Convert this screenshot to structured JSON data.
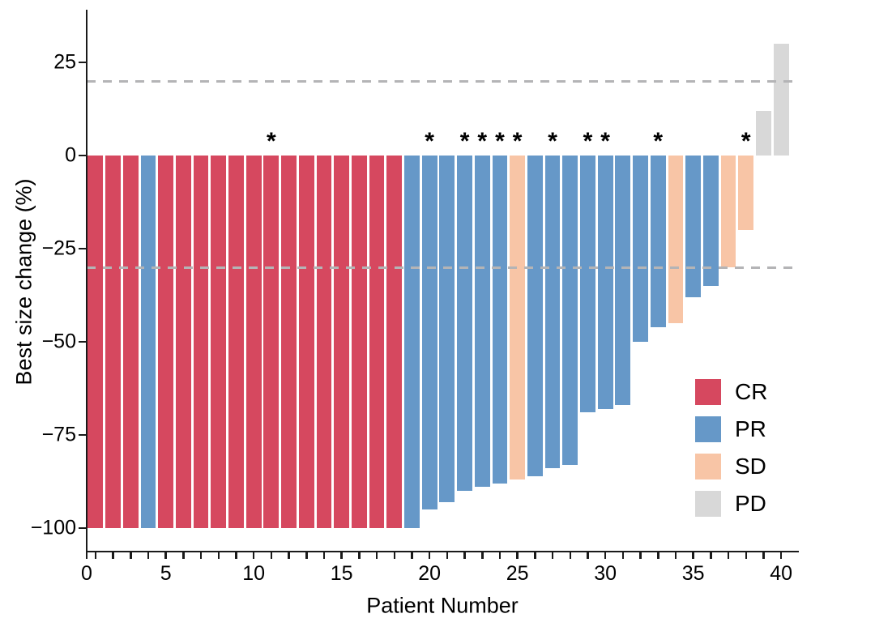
{
  "chart_data": {
    "type": "bar",
    "title": "",
    "xlabel": "Patient Number",
    "ylabel": "Best size change (%)",
    "ylim": [
      -100,
      32
    ],
    "xlim": [
      0,
      40.5
    ],
    "grid": false,
    "legend_position": "right-bottom-inside",
    "reference_lines": [
      20,
      -30
    ],
    "reference_line_color": "#b4b4b6",
    "axis_color": "#1a1a1a",
    "y_ticks": [
      {
        "v": 25,
        "label": "25"
      },
      {
        "v": 0,
        "label": "0"
      },
      {
        "v": -25,
        "label": "−25"
      },
      {
        "v": -50,
        "label": "−50"
      },
      {
        "v": -75,
        "label": "−75"
      },
      {
        "v": -100,
        "label": "−100"
      }
    ],
    "x_ticks": [
      {
        "v": 0,
        "label": "0"
      },
      {
        "v": 5,
        "label": "5"
      },
      {
        "v": 10,
        "label": "10"
      },
      {
        "v": 15,
        "label": "15"
      },
      {
        "v": 20,
        "label": "20"
      },
      {
        "v": 25,
        "label": "25"
      },
      {
        "v": 30,
        "label": "30"
      },
      {
        "v": 35,
        "label": "35"
      },
      {
        "v": 40,
        "label": "40"
      }
    ],
    "legend": [
      {
        "code": "CR",
        "color": "#d6485f"
      },
      {
        "code": "PR",
        "color": "#6698c8"
      },
      {
        "code": "SD",
        "color": "#f8c5a6"
      },
      {
        "code": "PD",
        "color": "#d8d8d8"
      }
    ],
    "star_marker": "*",
    "series": [
      {
        "patient": 1,
        "value": -100,
        "response": "CR",
        "star": false
      },
      {
        "patient": 2,
        "value": -100,
        "response": "CR",
        "star": false
      },
      {
        "patient": 3,
        "value": -100,
        "response": "CR",
        "star": false
      },
      {
        "patient": 4,
        "value": -100,
        "response": "PR",
        "star": false
      },
      {
        "patient": 5,
        "value": -100,
        "response": "CR",
        "star": false
      },
      {
        "patient": 6,
        "value": -100,
        "response": "CR",
        "star": false
      },
      {
        "patient": 7,
        "value": -100,
        "response": "CR",
        "star": false
      },
      {
        "patient": 8,
        "value": -100,
        "response": "CR",
        "star": false
      },
      {
        "patient": 9,
        "value": -100,
        "response": "CR",
        "star": false
      },
      {
        "patient": 10,
        "value": -100,
        "response": "CR",
        "star": false
      },
      {
        "patient": 11,
        "value": -100,
        "response": "CR",
        "star": true
      },
      {
        "patient": 12,
        "value": -100,
        "response": "CR",
        "star": false
      },
      {
        "patient": 13,
        "value": -100,
        "response": "CR",
        "star": false
      },
      {
        "patient": 14,
        "value": -100,
        "response": "CR",
        "star": false
      },
      {
        "patient": 15,
        "value": -100,
        "response": "CR",
        "star": false
      },
      {
        "patient": 16,
        "value": -100,
        "response": "CR",
        "star": false
      },
      {
        "patient": 17,
        "value": -100,
        "response": "CR",
        "star": false
      },
      {
        "patient": 18,
        "value": -100,
        "response": "CR",
        "star": false
      },
      {
        "patient": 19,
        "value": -100,
        "response": "PR",
        "star": false
      },
      {
        "patient": 20,
        "value": -95,
        "response": "PR",
        "star": true
      },
      {
        "patient": 21,
        "value": -93,
        "response": "PR",
        "star": false
      },
      {
        "patient": 22,
        "value": -90,
        "response": "PR",
        "star": true
      },
      {
        "patient": 23,
        "value": -89,
        "response": "PR",
        "star": true
      },
      {
        "patient": 24,
        "value": -88,
        "response": "PR",
        "star": true
      },
      {
        "patient": 25,
        "value": -87,
        "response": "SD",
        "star": true
      },
      {
        "patient": 26,
        "value": -86,
        "response": "PR",
        "star": false
      },
      {
        "patient": 27,
        "value": -84,
        "response": "PR",
        "star": true
      },
      {
        "patient": 28,
        "value": -83,
        "response": "PR",
        "star": false
      },
      {
        "patient": 29,
        "value": -69,
        "response": "PR",
        "star": true
      },
      {
        "patient": 30,
        "value": -68,
        "response": "PR",
        "star": true
      },
      {
        "patient": 31,
        "value": -67,
        "response": "PR",
        "star": false
      },
      {
        "patient": 32,
        "value": -50,
        "response": "PR",
        "star": false
      },
      {
        "patient": 33,
        "value": -46,
        "response": "PR",
        "star": true
      },
      {
        "patient": 34,
        "value": -45,
        "response": "SD",
        "star": false
      },
      {
        "patient": 35,
        "value": -38,
        "response": "PR",
        "star": false
      },
      {
        "patient": 36,
        "value": -35,
        "response": "PR",
        "star": false
      },
      {
        "patient": 37,
        "value": -30,
        "response": "SD",
        "star": false
      },
      {
        "patient": 38,
        "value": -20,
        "response": "SD",
        "star": true
      },
      {
        "patient": 39,
        "value": 12,
        "response": "PD",
        "star": false
      },
      {
        "patient": 40,
        "value": 30,
        "response": "PD",
        "star": false
      }
    ]
  }
}
